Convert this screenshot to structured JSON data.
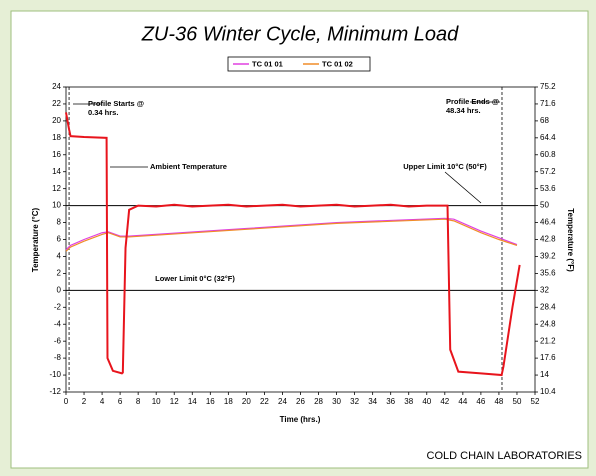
{
  "chart_data": {
    "type": "line",
    "title": "ZU-36 Winter Cycle, Minimum Load",
    "x_label": "Time (hrs.)",
    "y_label": "Temperature (°C)",
    "y2_label": "Temperature (°F)",
    "footer": "COLD CHAIN LABORATORIES",
    "xlim": [
      0,
      52
    ],
    "xticks": [
      0,
      2,
      4,
      6,
      8,
      10,
      12,
      14,
      16,
      18,
      20,
      22,
      24,
      26,
      28,
      30,
      32,
      34,
      36,
      38,
      40,
      42,
      44,
      46,
      48,
      50,
      52
    ],
    "ylim": [
      -12,
      24
    ],
    "yticks": [
      -12,
      -10,
      -8,
      -6,
      -4,
      -2,
      0,
      2,
      4,
      6,
      8,
      10,
      12,
      14,
      16,
      18,
      20,
      22,
      24
    ],
    "y2lim": [
      10.4,
      75.2
    ],
    "y2ticks": [
      10.4,
      14,
      17.6,
      21.2,
      24.8,
      28.4,
      32,
      35.6,
      39.2,
      42.8,
      46.4,
      50,
      53.6,
      57.2,
      60.8,
      64.4,
      68,
      71.6,
      75.2
    ],
    "hlines": [
      {
        "value": 10,
        "label": "Upper Limit 10°C (50°F)"
      },
      {
        "value": 0,
        "label": "Lower Limit 0°C (32°F)"
      }
    ],
    "vlines": [
      {
        "value": 0.34,
        "label": [
          "Profile Starts @",
          "0.34 hrs."
        ]
      },
      {
        "value": 48.34,
        "label": [
          "Profile Ends @",
          "48.34 hrs."
        ]
      }
    ],
    "series": [
      {
        "name": "Ambient Temperature",
        "color": "#e8141c",
        "x": [
          0,
          0.34,
          0.5,
          2,
          4.5,
          4.6,
          5.2,
          6.2,
          6.3,
          6.6,
          7,
          8,
          10,
          12,
          14,
          16,
          18,
          20,
          22,
          24,
          26,
          28,
          30,
          32,
          34,
          36,
          38,
          40,
          42.3,
          42.6,
          43.5,
          46,
          48.3,
          48.5,
          49.5,
          50.3
        ],
        "values": [
          21,
          19,
          18.2,
          18.1,
          18,
          -8,
          -9.5,
          -9.8,
          -9.7,
          5,
          9.5,
          10,
          9.9,
          10.1,
          9.9,
          10,
          10.1,
          9.9,
          10,
          10.1,
          9.9,
          10,
          10.1,
          9.9,
          10,
          10.1,
          9.9,
          10,
          10,
          -7,
          -9.6,
          -9.8,
          -10,
          -9,
          -2,
          3
        ]
      },
      {
        "name": "TC 01 01",
        "color": "#e040e0",
        "x": [
          0,
          0.5,
          2,
          4,
          4.7,
          6,
          7,
          20,
          30,
          42,
          43,
          46,
          48,
          50
        ],
        "values": [
          4.8,
          5.3,
          6,
          6.8,
          6.9,
          6.4,
          6.4,
          7.3,
          8,
          8.5,
          8.4,
          7,
          6.2,
          5.4
        ]
      },
      {
        "name": "TC 01 02",
        "color": "#f08c28",
        "x": [
          0,
          0.5,
          2,
          4,
          4.7,
          6,
          7,
          20,
          30,
          42,
          43,
          46,
          48,
          50
        ],
        "values": [
          4.6,
          5.1,
          5.8,
          6.6,
          6.8,
          6.3,
          6.3,
          7.2,
          7.9,
          8.4,
          8.2,
          6.8,
          6,
          5.3
        ]
      }
    ]
  }
}
